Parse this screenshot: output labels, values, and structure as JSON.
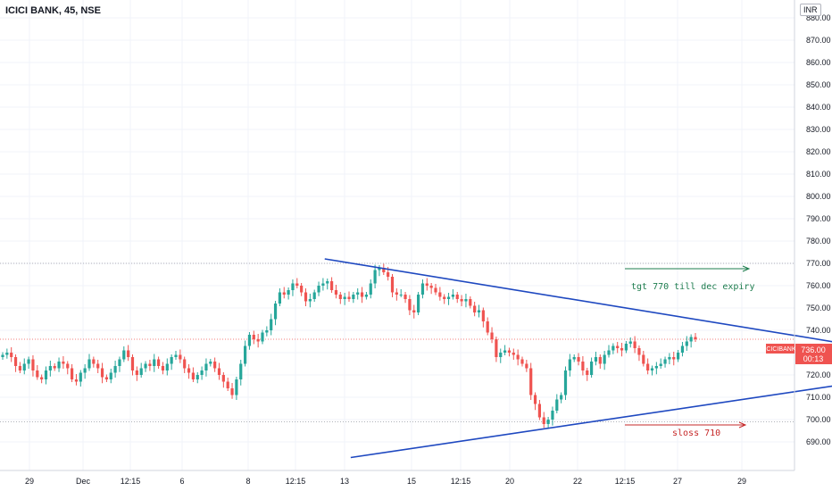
{
  "header": {
    "symbol_title": "ICICI BANK, 45, NSE",
    "currency": "INR"
  },
  "price_label": {
    "symbol": "ICICIBANK",
    "price": "736.00",
    "countdown": "00:13"
  },
  "colors": {
    "up": "#26a69a",
    "down": "#ef5350",
    "trendline": "#1e48c0",
    "target_arrow": "#1e7d4e",
    "stoploss_arrow": "#c62828",
    "grid": "#f0f3fa",
    "axis_text": "#131722"
  },
  "annotations": {
    "target_note": "tgt 770 till dec expiry",
    "stoploss_note": "sloss 710"
  },
  "chart_data": {
    "type": "candlestick",
    "title": "ICICI BANK, 45, NSE",
    "y_axis_ticks": [
      "880.00",
      "870.00",
      "860.00",
      "850.00",
      "840.00",
      "830.00",
      "820.00",
      "810.00",
      "800.00",
      "790.00",
      "780.00",
      "770.00",
      "760.00",
      "750.00",
      "740.00",
      "730.00",
      "720.00",
      "710.00",
      "700.00",
      "690.00"
    ],
    "y_range": [
      685,
      888
    ],
    "x_axis_ticks": [
      "29",
      "Dec",
      "12:15",
      "6",
      "8",
      "12:15",
      "13",
      "15",
      "12:15",
      "20",
      "22",
      "12:15",
      "27",
      "29"
    ],
    "horizontal_levels": [
      770,
      736,
      699
    ],
    "trendlines": [
      {
        "name": "upper",
        "from": {
          "bar": 95,
          "price": 772
        },
        "to": {
          "bar": 223,
          "price": 725
        }
      },
      {
        "name": "lower",
        "from": {
          "bar": 101,
          "price": 683
        },
        "to": {
          "bar": 223,
          "price": 724
        }
      }
    ],
    "closes": [
      729,
      730,
      728,
      724,
      722,
      725,
      727,
      722,
      719,
      718,
      722,
      724,
      723,
      726,
      725,
      723,
      718,
      717,
      721,
      723,
      727,
      725,
      723,
      719,
      718,
      721,
      724,
      727,
      731,
      728,
      722,
      720,
      723,
      725,
      724,
      727,
      724,
      722,
      725,
      728,
      729,
      727,
      723,
      721,
      718,
      720,
      722,
      725,
      726,
      723,
      720,
      717,
      714,
      711,
      718,
      725,
      733,
      738,
      736,
      735,
      739,
      740,
      745,
      752,
      757,
      756,
      758,
      761,
      760,
      757,
      753,
      754,
      757,
      760,
      761,
      762,
      758,
      756,
      754,
      755,
      754,
      756,
      757,
      755,
      756,
      761,
      767,
      768,
      766,
      764,
      757,
      756,
      756,
      754,
      749,
      748,
      756,
      761,
      760,
      759,
      757,
      755,
      754,
      755,
      756,
      754,
      753,
      754,
      751,
      748,
      749,
      744,
      739,
      736,
      728,
      730,
      731,
      730,
      729,
      727,
      725,
      723,
      711,
      707,
      701,
      698,
      700,
      704,
      709,
      711,
      722,
      727,
      728,
      726,
      722,
      720,
      726,
      728,
      725,
      729,
      731,
      733,
      732,
      731,
      734,
      735,
      732,
      729,
      725,
      722,
      723,
      724,
      725,
      727,
      728,
      727,
      730,
      733,
      735,
      737,
      736
    ]
  }
}
